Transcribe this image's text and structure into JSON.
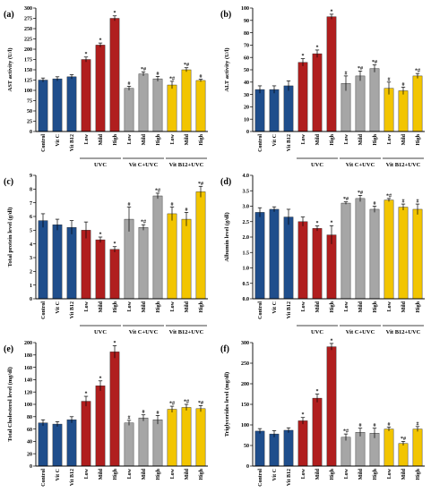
{
  "colors": {
    "control": "#1f4e8c",
    "uvc": "#b01e1e",
    "vitc": "#a6a6a6",
    "vitb12": "#f2c500",
    "sig_fill": "#e060d0"
  },
  "chart_data": [
    {
      "type": "bar",
      "panel_label": "(a)",
      "ylabel": "AST activity (U/l)",
      "ylim": [
        0,
        300
      ],
      "yticks": [
        0,
        25,
        50,
        75,
        100,
        125,
        150,
        175,
        200,
        225,
        250,
        275,
        300
      ],
      "categories": [
        "Control",
        "Vit C",
        "Vit B12",
        "Low",
        "Mild",
        "High",
        "Low",
        "Mild",
        "High",
        "Low",
        "Mild",
        "High"
      ],
      "groups": [
        {
          "label": "UVC",
          "start": 3,
          "end": 5
        },
        {
          "label": "Vit C+UVC",
          "start": 6,
          "end": 8
        },
        {
          "label": "Vit B12+UVC",
          "start": 9,
          "end": 11
        }
      ],
      "values": [
        125,
        128,
        133,
        175,
        210,
        275,
        105,
        140,
        128,
        113,
        150,
        124
      ],
      "errors": [
        5,
        5,
        5,
        6,
        5,
        6,
        5,
        5,
        6,
        9,
        5,
        3
      ],
      "marks": [
        "",
        "",
        "",
        "*",
        "*",
        "*",
        "#",
        "*#",
        "#",
        "*#",
        "*#",
        "#"
      ]
    },
    {
      "type": "bar",
      "panel_label": "(b)",
      "ylabel": "ALT activity (U/l)",
      "ylim": [
        0,
        100
      ],
      "yticks": [
        0,
        10,
        20,
        30,
        40,
        50,
        60,
        70,
        80,
        90,
        100
      ],
      "categories": [
        "Control",
        "Vit C",
        "Vit B12",
        "Low",
        "Mild",
        "High",
        "Low",
        "Mild",
        "High",
        "Low",
        "Mild",
        "High"
      ],
      "groups": [
        {
          "label": "UVC",
          "start": 3,
          "end": 5
        },
        {
          "label": "Vit C+UVC",
          "start": 6,
          "end": 8
        },
        {
          "label": "Vit B12+UVC",
          "start": 9,
          "end": 11
        }
      ],
      "values": [
        34,
        34,
        37,
        56,
        63,
        93,
        39,
        45,
        51,
        35,
        33,
        45
      ],
      "errors": [
        3,
        3,
        4,
        3,
        3,
        2,
        6,
        4,
        3,
        5,
        3,
        2
      ],
      "marks": [
        "",
        "",
        "",
        "*",
        "*",
        "*",
        "#",
        "*#",
        "*#",
        "#",
        "#",
        "*#"
      ]
    },
    {
      "type": "bar",
      "panel_label": "(c)",
      "ylabel": "Total protein level (g/dl)",
      "ylim": [
        0,
        9
      ],
      "yticks": [
        0,
        1,
        2,
        3,
        4,
        5,
        6,
        7,
        8,
        9
      ],
      "categories": [
        "Control",
        "Vit C",
        "Vit B12",
        "Low",
        "Mild",
        "High",
        "Low",
        "Mild",
        "High",
        "Low",
        "Mild",
        "High"
      ],
      "groups": [
        {
          "label": "UVC",
          "start": 3,
          "end": 5
        },
        {
          "label": "Vit C+UVC",
          "start": 6,
          "end": 8
        },
        {
          "label": "Vit B12+UVC",
          "start": 9,
          "end": 11
        }
      ],
      "values": [
        5.7,
        5.4,
        5.2,
        5.0,
        4.3,
        3.6,
        5.8,
        5.2,
        7.5,
        6.2,
        5.8,
        7.8
      ],
      "errors": [
        0.5,
        0.4,
        0.5,
        0.6,
        0.2,
        0.2,
        0.9,
        0.2,
        0.2,
        0.5,
        0.5,
        0.4
      ],
      "marks": [
        "",
        "",
        "",
        "",
        "*",
        "*",
        "#",
        "*#",
        "*#",
        "#",
        "#",
        "*#"
      ]
    },
    {
      "type": "bar",
      "panel_label": "(d)",
      "ylabel": "Albumin level (g/dl)",
      "ylim": [
        0,
        4
      ],
      "yticks": [
        0,
        0.5,
        1,
        1.5,
        2,
        2.5,
        3,
        3.5,
        4
      ],
      "ytick_labels": [
        "0.0",
        "0.5",
        "1.0",
        "1.5",
        "2.0",
        "2.5",
        "3.0",
        "3.5",
        "4.0"
      ],
      "categories": [
        "Control",
        "Vit C",
        "Vit B12",
        "Low",
        "Mild",
        "High",
        "Low",
        "Mild",
        "High",
        "Low",
        "Mild",
        "High"
      ],
      "groups": [
        {
          "label": "UVC",
          "start": 3,
          "end": 5
        },
        {
          "label": "Vit C+UVC",
          "start": 6,
          "end": 8
        },
        {
          "label": "Vit B12+UVC",
          "start": 9,
          "end": 11
        }
      ],
      "values": [
        2.8,
        2.9,
        2.65,
        2.5,
        2.28,
        2.07,
        3.1,
        3.25,
        2.9,
        3.2,
        2.97,
        2.9
      ],
      "errors": [
        0.15,
        0.08,
        0.25,
        0.15,
        0.08,
        0.3,
        0.04,
        0.1,
        0.1,
        0.05,
        0.1,
        0.17
      ],
      "marks": [
        "",
        "",
        "",
        "",
        "*",
        "*",
        "*#",
        "*#",
        "#",
        "*#",
        "#",
        "#"
      ]
    },
    {
      "type": "bar",
      "panel_label": "(e)",
      "ylabel": "Total Cholesterol level (mg/dl)",
      "ylim": [
        0,
        200
      ],
      "yticks": [
        0,
        20,
        40,
        60,
        80,
        100,
        120,
        140,
        160,
        180,
        200
      ],
      "categories": [
        "Control",
        "Vit C",
        "Vit B12",
        "Low",
        "Mild",
        "High",
        "Low",
        "Mild",
        "High",
        "Low",
        "Mild",
        "High"
      ],
      "groups": [
        {
          "label": "UVC",
          "start": 3,
          "end": 5
        },
        {
          "label": "Vit C+UVC",
          "start": 6,
          "end": 8
        },
        {
          "label": "Vit B12+UVC",
          "start": 9,
          "end": 11
        }
      ],
      "values": [
        70,
        68,
        75,
        105,
        130,
        185,
        70,
        78,
        75,
        92,
        95,
        93
      ],
      "errors": [
        5,
        4,
        5,
        8,
        8,
        10,
        4,
        5,
        7,
        5,
        5,
        5
      ],
      "marks": [
        "",
        "",
        "",
        "*",
        "*",
        "*",
        "#",
        "#",
        "#",
        "*#",
        "*#",
        "*#"
      ]
    },
    {
      "type": "bar",
      "panel_label": "(f)",
      "ylabel": "Triglycerides level (mg/dl)",
      "ylim": [
        0,
        300
      ],
      "yticks": [
        0,
        50,
        100,
        150,
        200,
        250,
        300
      ],
      "categories": [
        "Control",
        "Vit C",
        "Vit B12",
        "Low",
        "Mild",
        "High",
        "Low",
        "Mild",
        "High",
        "Low",
        "Mild",
        "High"
      ],
      "groups": [
        {
          "label": "UVC",
          "start": 3,
          "end": 5
        },
        {
          "label": "Vit C+UVC",
          "start": 6,
          "end": 8
        },
        {
          "label": "Vit B12+UVC",
          "start": 9,
          "end": 11
        }
      ],
      "values": [
        85,
        78,
        87,
        110,
        165,
        290,
        70,
        82,
        80,
        90,
        55,
        90
      ],
      "errors": [
        6,
        8,
        6,
        8,
        10,
        8,
        8,
        10,
        12,
        5,
        5,
        6
      ],
      "marks": [
        "",
        "",
        "",
        "*",
        "*",
        "*",
        "*#",
        "#",
        "#",
        "#",
        "*#",
        "#"
      ]
    }
  ]
}
